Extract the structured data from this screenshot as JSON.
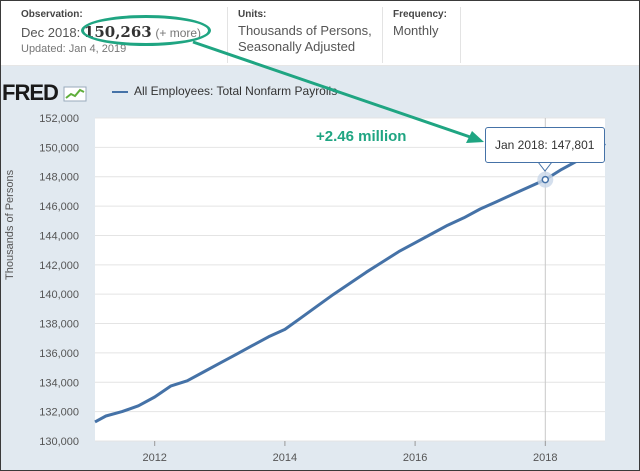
{
  "header": {
    "observation_label": "Observation:",
    "observation_date": "Dec 2018:",
    "observation_value": "150,263",
    "observation_more": "(+ more)",
    "updated": "Updated: Jan 4, 2019",
    "units_label": "Units:",
    "units_line1": "Thousands of Persons,",
    "units_line2": "Seasonally Adjusted",
    "frequency_label": "Frequency:",
    "frequency_value": "Monthly"
  },
  "brand": {
    "logo_text": "FRED",
    "logo_icon": "chart-line-icon"
  },
  "annotation": {
    "text": "+2.46 million",
    "color": "#1fa582"
  },
  "tooltip": {
    "label": "Jan 2018:",
    "value": "147,801"
  },
  "colors": {
    "series": "#4572a7",
    "panel_bg": "#e1e9f0",
    "highlight": "#1fa582"
  },
  "chart_data": {
    "type": "line",
    "title": "",
    "legend": [
      "All Employees: Total Nonfarm Payrolls"
    ],
    "xlabel": "",
    "ylabel": "Thousands of Persons",
    "xlim": [
      2011.083,
      2018.917
    ],
    "ylim": [
      130000,
      152000
    ],
    "x_ticks": [
      "2012",
      "2014",
      "2016",
      "2018"
    ],
    "y_ticks": [
      "130,000",
      "132,000",
      "134,000",
      "136,000",
      "138,000",
      "140,000",
      "142,000",
      "144,000",
      "146,000",
      "148,000",
      "150,000",
      "152,000"
    ],
    "grid": "horizontal",
    "legend_position": "top-left",
    "highlight": {
      "x": "Jan 2018",
      "y": 147801
    },
    "series": [
      {
        "name": "All Employees: Total Nonfarm Payrolls",
        "x": [
          2011.083,
          2011.25,
          2011.5,
          2011.75,
          2012.0,
          2012.25,
          2012.5,
          2012.75,
          2013.0,
          2013.25,
          2013.5,
          2013.75,
          2014.0,
          2014.25,
          2014.5,
          2014.75,
          2015.0,
          2015.25,
          2015.5,
          2015.75,
          2016.0,
          2016.25,
          2016.5,
          2016.75,
          2017.0,
          2017.25,
          2017.5,
          2017.75,
          2018.0,
          2018.25,
          2018.5,
          2018.75,
          2018.917
        ],
        "y": [
          131300,
          131700,
          132000,
          132400,
          133000,
          133750,
          134100,
          134700,
          135300,
          135900,
          136500,
          137100,
          137600,
          138400,
          139200,
          140000,
          140750,
          141500,
          142200,
          142900,
          143500,
          144100,
          144700,
          145200,
          145800,
          146300,
          146800,
          147300,
          147801,
          148500,
          149100,
          149700,
          150263
        ]
      }
    ]
  }
}
